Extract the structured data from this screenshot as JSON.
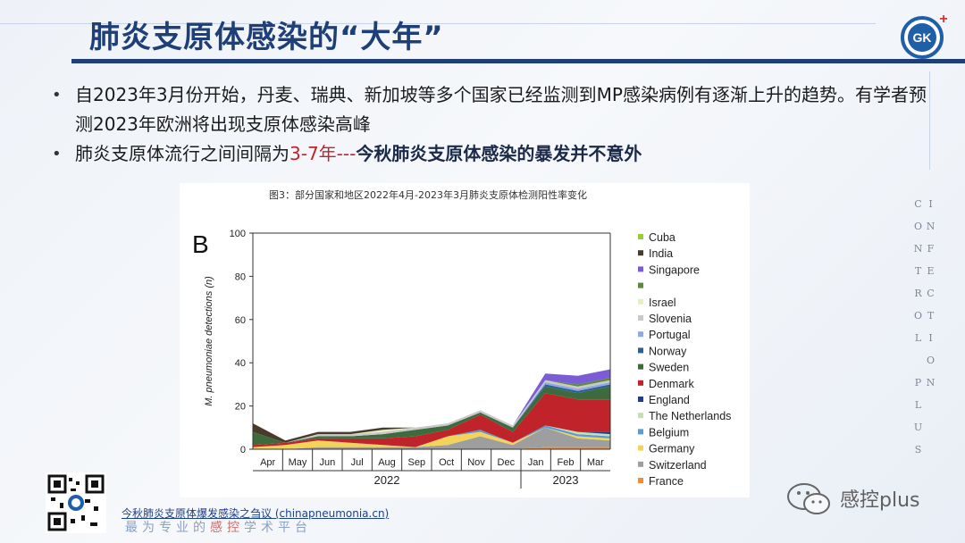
{
  "header": {
    "title": "肺炎支原体感染的“大年”",
    "logo_text": "GK",
    "logo_plus": "+",
    "vertical_text": "INFECTION CONTROL PLUS"
  },
  "bullets": {
    "b1": "自2023年3月份开始，丹麦、瑞典、新加坡等多个国家已经监测到MP感染病例有逐渐上升的趋势。有学者预测2023年欧洲将出现支原体感染高峰",
    "b2_prefix": "肺炎支原体流行之间间隔为",
    "b2_red": "3-7年---",
    "b2_bold": "今秋肺炎支原体感染的暴发并不意外"
  },
  "footer": {
    "source_link": "今秋肺炎支原体爆发感染之刍议 (chinapneumonia.cn)",
    "slogan_part1": "最为专业的",
    "slogan_red": "感控",
    "slogan_part2": "学术平台",
    "wechat_name": "感控plus"
  },
  "chart_data": {
    "type": "area",
    "stacked": true,
    "caption": "图3：部分国家和地区2022年4月-2023年3月肺炎支原体检测阳性率变化",
    "panel_label": "B",
    "ylabel": "M. pneumoniae detections (n)",
    "ylim": [
      0,
      100
    ],
    "yticks": [
      0,
      20,
      40,
      60,
      80,
      100
    ],
    "categories": [
      "Apr",
      "May",
      "Jun",
      "Jul",
      "Aug",
      "Sep",
      "Oct",
      "Nov",
      "Dec",
      "Jan",
      "Feb",
      "Mar"
    ],
    "year_groups": [
      {
        "label": "2022",
        "from": 0,
        "to": 8
      },
      {
        "label": "2023",
        "from": 9,
        "to": 11
      }
    ],
    "legend_position": "right",
    "grid": false,
    "series": [
      {
        "name": "France",
        "color": "#f08a3c",
        "values": [
          0,
          0,
          0,
          0,
          0,
          0,
          0,
          0,
          0,
          1,
          1,
          1
        ]
      },
      {
        "name": "Switzerland",
        "color": "#9e9e9e",
        "values": [
          0,
          0,
          1,
          1,
          1,
          1,
          2,
          6,
          2,
          9,
          4,
          3
        ]
      },
      {
        "name": "Germany",
        "color": "#f2d45a",
        "values": [
          1,
          2,
          3,
          2,
          1,
          0,
          4,
          2,
          1,
          0,
          1,
          1
        ]
      },
      {
        "name": "Belgium",
        "color": "#5b9bd5",
        "values": [
          0,
          0,
          0,
          0,
          0,
          0,
          0,
          1,
          0,
          1,
          1,
          1
        ]
      },
      {
        "name": "The Netherlands",
        "color": "#c5e0b4",
        "values": [
          0,
          0,
          0,
          0,
          0,
          0,
          0,
          0,
          0,
          0,
          1,
          1
        ]
      },
      {
        "name": "England",
        "color": "#1f3f8a",
        "values": [
          0,
          0,
          0,
          0,
          0,
          0,
          0,
          0,
          0,
          0,
          0,
          1
        ]
      },
      {
        "name": "Denmark",
        "color": "#c0242a",
        "values": [
          1,
          1,
          1,
          2,
          3,
          5,
          3,
          7,
          5,
          15,
          15,
          15
        ]
      },
      {
        "name": "Sweden",
        "color": "#3d6b3d",
        "values": [
          6,
          0,
          1,
          1,
          2,
          3,
          2,
          1,
          2,
          3,
          3,
          6
        ]
      },
      {
        "name": "Norway",
        "color": "#2f5f8f",
        "values": [
          0,
          0,
          0,
          0,
          0,
          0,
          0,
          0,
          0,
          1,
          1,
          1
        ]
      },
      {
        "name": "Portugal",
        "color": "#8faadc",
        "values": [
          0,
          0,
          0,
          0,
          0,
          0,
          0,
          0,
          0,
          1,
          1,
          1
        ]
      },
      {
        "name": "Slovenia",
        "color": "#c9c9c9",
        "values": [
          0,
          0,
          1,
          1,
          1,
          1,
          1,
          1,
          1,
          1,
          1,
          1
        ]
      },
      {
        "name": "Israel",
        "color": "#e6efc0",
        "values": [
          0,
          0,
          0,
          0,
          1,
          0,
          0,
          0,
          0,
          0,
          0,
          0
        ]
      },
      {
        "name": "",
        "color": "#5a8a3c",
        "values": [
          0,
          0,
          0,
          0,
          0,
          0,
          0,
          0,
          0,
          0,
          1,
          1
        ]
      },
      {
        "name": "Singapore",
        "color": "#7b5cd6",
        "values": [
          0,
          0,
          0,
          0,
          0,
          0,
          0,
          0,
          0,
          3,
          4,
          4
        ]
      },
      {
        "name": "India",
        "color": "#4a3a2a",
        "values": [
          4,
          1,
          1,
          1,
          1,
          0,
          0,
          0,
          0,
          0,
          0,
          0
        ]
      },
      {
        "name": "Cuba",
        "color": "#9acd32",
        "values": [
          0,
          0,
          0,
          0,
          0,
          0,
          0,
          0,
          0,
          0,
          0,
          0
        ]
      }
    ]
  }
}
